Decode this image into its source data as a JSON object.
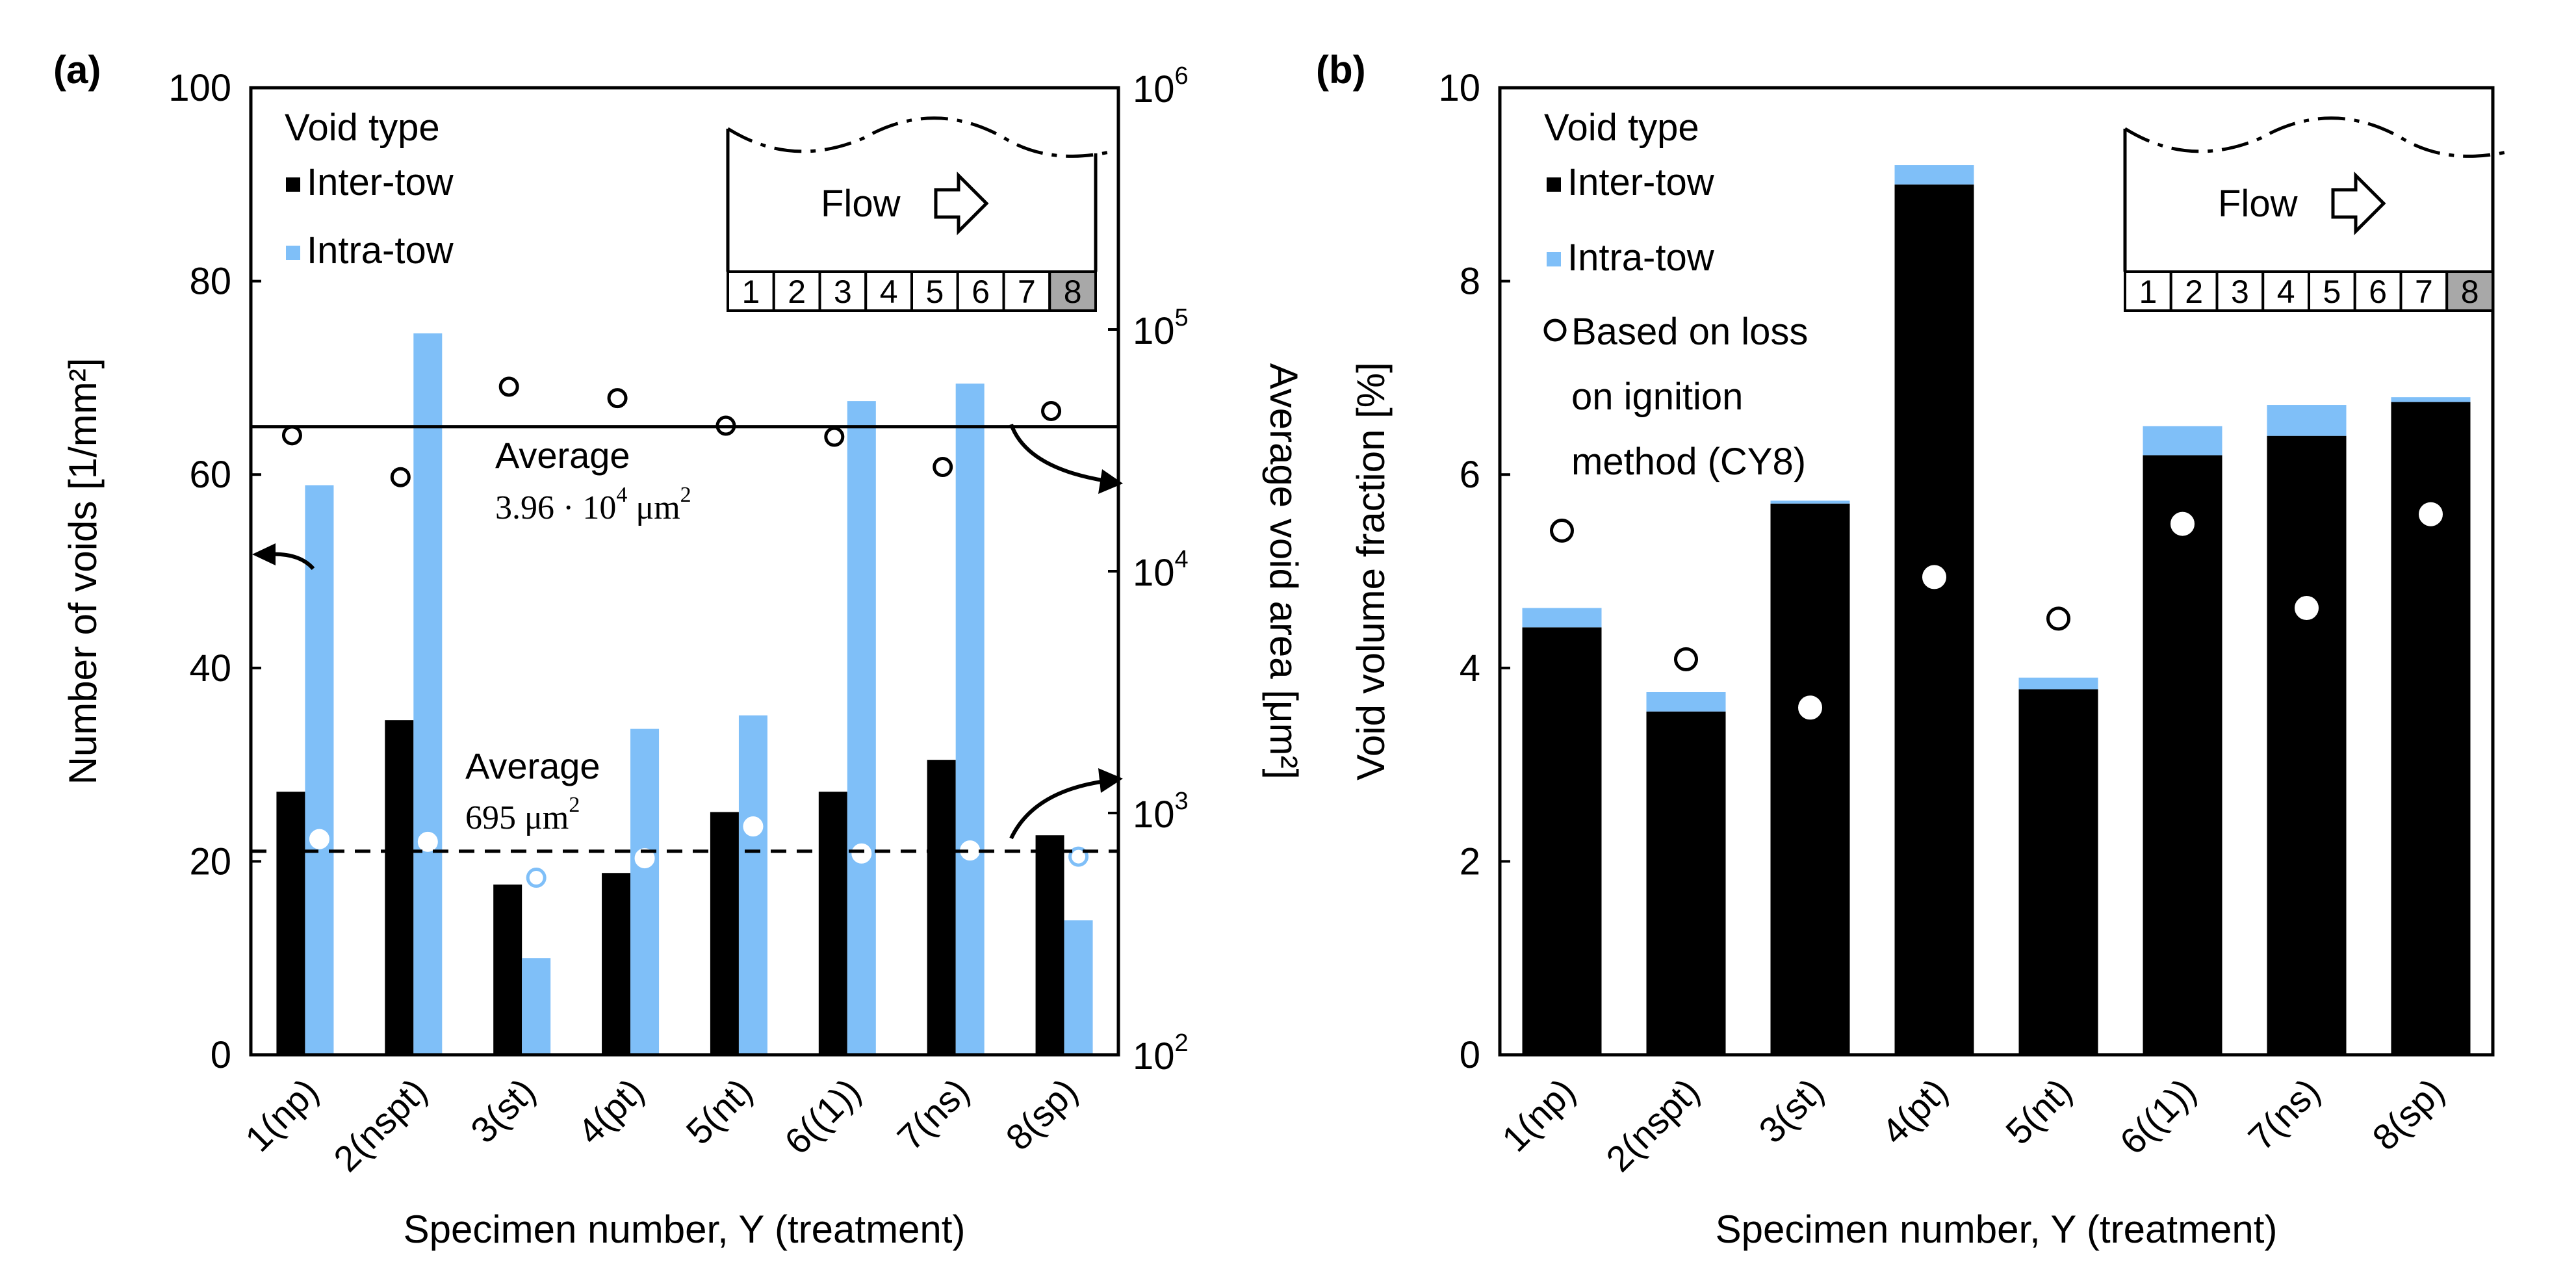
{
  "colors": {
    "inter": "#000000",
    "intra": "#7fbff8",
    "white": "#ffffff"
  },
  "chart_data": [
    {
      "panel": "(a)",
      "type": "bar",
      "categories": [
        "1(np)",
        "2(nspt)",
        "3(st)",
        "4(pt)",
        "5(nt)",
        "6((1))",
        "7(ns)",
        "8(sp)"
      ],
      "series": [
        {
          "name": "Inter-tow",
          "values": [
            27.2,
            34.6,
            17.6,
            18.8,
            25.1,
            27.2,
            30.5,
            22.7
          ]
        },
        {
          "name": "Intra-tow",
          "values": [
            58.9,
            74.6,
            10.0,
            33.7,
            35.1,
            67.6,
            69.4,
            13.9
          ]
        }
      ],
      "average_area_inter_tow": [
        36500,
        24500,
        58000,
        52000,
        40000,
        36000,
        27000,
        46000
      ],
      "average_area_intra_tow": [
        780,
        760,
        540,
        650,
        880,
        680,
        700,
        660
      ],
      "yticks_left": [
        "0",
        "20",
        "40",
        "60",
        "80",
        "100"
      ],
      "yticks_right": [
        "10",
        "10",
        "10",
        "10",
        "10"
      ],
      "yticks_right_exp": [
        "2",
        "3",
        "4",
        "5",
        "6"
      ],
      "ylim": [
        0,
        100
      ],
      "ylim_right_log": [
        100,
        1000000
      ],
      "xlabel": "Specimen number, Y (treatment)",
      "ylabel": "Number of voids [1/mm²]",
      "ylabel_right": "Average void area [μm²]",
      "legend_title": "Void type",
      "legend": [
        "Inter-tow",
        "Intra-tow"
      ],
      "avg_upper_label": "Average",
      "avg_upper_value": "3.96 · 10",
      "avg_upper_exp": "4",
      "avg_upper_unit": "μm",
      "avg_upper_unit_exp": "2",
      "avg_upper_area": 39600,
      "avg_lower_label": "Average",
      "avg_lower_value": "695 μm",
      "avg_lower_exp": "2",
      "avg_lower_area": 695,
      "inset_flow_label": "Flow",
      "inset_cells": [
        "1",
        "2",
        "3",
        "4",
        "5",
        "6",
        "7",
        "8"
      ]
    },
    {
      "panel": "(b)",
      "type": "bar",
      "stacked": true,
      "categories": [
        "1(np)",
        "2(nspt)",
        "3(st)",
        "4(pt)",
        "5(nt)",
        "6((1))",
        "7(ns)",
        "8(sp)"
      ],
      "series": [
        {
          "name": "Inter-tow",
          "values": [
            4.42,
            3.55,
            5.7,
            9.0,
            3.78,
            6.2,
            6.4,
            6.75
          ]
        },
        {
          "name": "Intra-tow",
          "values": [
            0.2,
            0.2,
            0.03,
            0.2,
            0.12,
            0.3,
            0.32,
            0.05
          ]
        }
      ],
      "loss_on_ignition": [
        5.42,
        4.09,
        3.59,
        4.94,
        4.51,
        5.49,
        4.62,
        5.59
      ],
      "yticks": [
        "0",
        "2",
        "4",
        "6",
        "8",
        "10"
      ],
      "ylim": [
        0,
        10
      ],
      "xlabel": "Specimen number, Y (treatment)",
      "ylabel": "Void volume fraction [%]",
      "legend_title": "Void type",
      "legend": [
        "Inter-tow",
        "Intra-tow"
      ],
      "legend_loi": [
        "Based on loss",
        "on ignition",
        "method (CY8)"
      ],
      "inset_flow_label": "Flow",
      "inset_cells": [
        "1",
        "2",
        "3",
        "4",
        "5",
        "6",
        "7",
        "8"
      ]
    }
  ]
}
